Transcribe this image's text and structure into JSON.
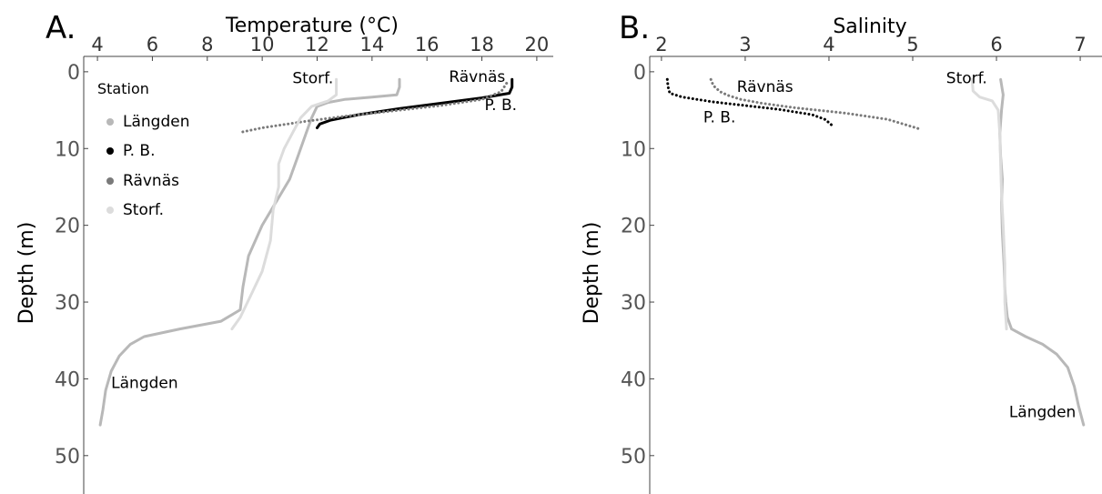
{
  "panels": [
    {
      "letter": "A.",
      "xlabel": "Temperature (°C)",
      "ylabel": "Depth (m)"
    },
    {
      "letter": "B.",
      "xlabel": "Salinity",
      "ylabel": "Depth (m)"
    }
  ],
  "legend": {
    "title": "Station",
    "items": [
      {
        "label": "Längden",
        "color": "#b8b8b8"
      },
      {
        "label": "P. B.",
        "color": "#000000"
      },
      {
        "label": "Rävnäs",
        "color": "#7a7a7a"
      },
      {
        "label": "Storf.",
        "color": "#dcdcdc"
      }
    ]
  },
  "annotations": {
    "temperature": [
      {
        "text": "Storf.",
        "x": 11.1,
        "y": 1.5
      },
      {
        "text": "Rävnäs",
        "x": 16.8,
        "y": 1.3
      },
      {
        "text": "P. B.",
        "x": 18.1,
        "y": 5.0
      },
      {
        "text": "Längden",
        "x": 4.5,
        "y": 41.2
      }
    ],
    "salinity": [
      {
        "text": "Rävnäs",
        "x": 2.9,
        "y": 2.6
      },
      {
        "text": "P. B.",
        "x": 2.5,
        "y": 6.6
      },
      {
        "text": "Storf.",
        "x": 5.4,
        "y": 1.5
      },
      {
        "text": "Längden",
        "x": 6.15,
        "y": 45.0
      }
    ]
  },
  "chart_data": [
    {
      "type": "line",
      "title": "",
      "xlabel": "Temperature (°C)",
      "ylabel": "Depth (m)",
      "xlim": [
        3.5,
        20.6
      ],
      "ylim": [
        55,
        -2
      ],
      "x_axis_position": "top",
      "y_inverted": true,
      "grid": false,
      "legend_position": "top-left",
      "xticks": [
        4,
        6,
        8,
        10,
        12,
        14,
        16,
        18,
        20
      ],
      "yticks": [
        0,
        10,
        20,
        30,
        40,
        50
      ],
      "series": [
        {
          "name": "Längden",
          "color": "#b8b8b8",
          "style": "solid",
          "points": [
            [
              15.0,
              1
            ],
            [
              15.0,
              2
            ],
            [
              14.9,
              3
            ],
            [
              14.0,
              3.3
            ],
            [
              13.0,
              3.6
            ],
            [
              12.4,
              4.0
            ],
            [
              12.0,
              4.5
            ],
            [
              11.8,
              6
            ],
            [
              11.6,
              8
            ],
            [
              11.3,
              11
            ],
            [
              11.0,
              14
            ],
            [
              10.5,
              17
            ],
            [
              10.0,
              20
            ],
            [
              9.5,
              24
            ],
            [
              9.3,
              28
            ],
            [
              9.2,
              31
            ],
            [
              8.5,
              32.5
            ],
            [
              7.0,
              33.5
            ],
            [
              5.7,
              34.5
            ],
            [
              5.2,
              35.5
            ],
            [
              4.8,
              37
            ],
            [
              4.5,
              39
            ],
            [
              4.3,
              41.5
            ],
            [
              4.2,
              44
            ],
            [
              4.1,
              46
            ]
          ]
        },
        {
          "name": "P. B.",
          "color": "#000000",
          "style": "solid",
          "points": [
            [
              19.1,
              1
            ],
            [
              19.1,
              2
            ],
            [
              19.0,
              2.8
            ],
            [
              18.0,
              3.4
            ],
            [
              16.5,
              4.1
            ],
            [
              15.0,
              4.8
            ],
            [
              13.5,
              5.6
            ],
            [
              12.5,
              6.3
            ],
            [
              12.1,
              6.8
            ],
            [
              12.0,
              7.3
            ]
          ]
        },
        {
          "name": "Rävnäs",
          "color": "#7a7a7a",
          "style": "dotted",
          "points": [
            [
              18.9,
              1.5
            ],
            [
              18.7,
              2.6
            ],
            [
              18.0,
              3.6
            ],
            [
              16.5,
              4.4
            ],
            [
              15.0,
              5.0
            ],
            [
              13.0,
              5.8
            ],
            [
              11.5,
              6.5
            ],
            [
              10.0,
              7.3
            ],
            [
              9.2,
              7.9
            ]
          ]
        },
        {
          "name": "Storf.",
          "color": "#dcdcdc",
          "style": "solid",
          "points": [
            [
              12.7,
              1
            ],
            [
              12.7,
              3
            ],
            [
              12.4,
              3.8
            ],
            [
              11.8,
              4.5
            ],
            [
              11.4,
              6
            ],
            [
              11.1,
              8
            ],
            [
              10.8,
              10
            ],
            [
              10.6,
              12
            ],
            [
              10.6,
              15
            ],
            [
              10.4,
              18
            ],
            [
              10.3,
              22
            ],
            [
              10.0,
              26
            ],
            [
              9.6,
              29
            ],
            [
              9.2,
              32
            ],
            [
              8.9,
              33.5
            ]
          ]
        }
      ]
    },
    {
      "type": "line",
      "title": "",
      "xlabel": "Salinity",
      "ylabel": "Depth (m)",
      "xlim": [
        1.86,
        7.26
      ],
      "ylim": [
        55,
        -2
      ],
      "x_axis_position": "top",
      "y_inverted": true,
      "grid": false,
      "xticks": [
        2,
        3,
        4,
        5,
        6,
        7
      ],
      "yticks": [
        0,
        10,
        20,
        30,
        40,
        50
      ],
      "series": [
        {
          "name": "Längden",
          "color": "#b8b8b8",
          "style": "solid",
          "points": [
            [
              6.05,
              1
            ],
            [
              6.08,
              3
            ],
            [
              6.06,
              5
            ],
            [
              6.04,
              8
            ],
            [
              6.05,
              11
            ],
            [
              6.07,
              14
            ],
            [
              6.06,
              17
            ],
            [
              6.07,
              21
            ],
            [
              6.09,
              25
            ],
            [
              6.1,
              28
            ],
            [
              6.11,
              30
            ],
            [
              6.13,
              32
            ],
            [
              6.18,
              33.5
            ],
            [
              6.35,
              34.5
            ],
            [
              6.55,
              35.5
            ],
            [
              6.72,
              36.8
            ],
            [
              6.85,
              38.5
            ],
            [
              6.93,
              41
            ],
            [
              6.98,
              43.5
            ],
            [
              7.04,
              46
            ]
          ]
        },
        {
          "name": "P. B.",
          "color": "#000000",
          "style": "dotted",
          "points": [
            [
              2.07,
              1
            ],
            [
              2.08,
              2
            ],
            [
              2.1,
              2.8
            ],
            [
              2.25,
              3.3
            ],
            [
              2.6,
              3.9
            ],
            [
              3.0,
              4.4
            ],
            [
              3.4,
              4.9
            ],
            [
              3.8,
              5.6
            ],
            [
              3.95,
              6.2
            ],
            [
              4.02,
              6.8
            ],
            [
              4.05,
              7.2
            ]
          ]
        },
        {
          "name": "Rävnäs",
          "color": "#7a7a7a",
          "style": "dotted",
          "points": [
            [
              2.59,
              1
            ],
            [
              2.62,
              1.8
            ],
            [
              2.7,
              2.6
            ],
            [
              2.8,
              3.1
            ],
            [
              2.95,
              3.6
            ],
            [
              3.2,
              4.1
            ],
            [
              3.6,
              4.7
            ],
            [
              4.2,
              5.4
            ],
            [
              4.7,
              6.2
            ],
            [
              5.1,
              7.5
            ]
          ]
        },
        {
          "name": "Storf.",
          "color": "#dcdcdc",
          "style": "solid",
          "points": [
            [
              5.71,
              1
            ],
            [
              5.72,
              2.5
            ],
            [
              5.8,
              3.3
            ],
            [
              5.95,
              3.8
            ],
            [
              6.02,
              5
            ],
            [
              6.04,
              8
            ],
            [
              6.05,
              12
            ],
            [
              6.06,
              16
            ],
            [
              6.08,
              20
            ],
            [
              6.1,
              25
            ],
            [
              6.1,
              30
            ],
            [
              6.12,
              33.5
            ]
          ]
        }
      ]
    }
  ]
}
